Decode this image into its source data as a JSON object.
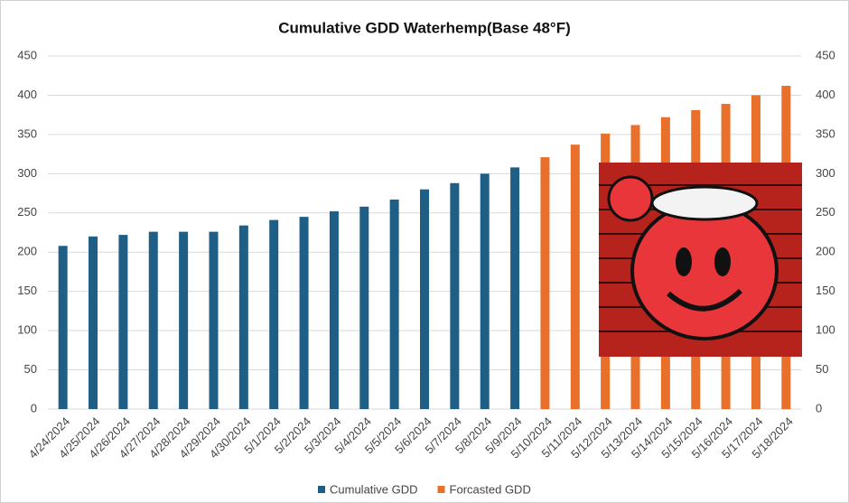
{
  "chart_data": {
    "type": "bar",
    "title": "Cumulative GDD Waterhemp(Base 48°F)",
    "categories": [
      "4/24/2024",
      "4/25/2024",
      "4/26/2024",
      "4/27/2024",
      "4/28/2024",
      "4/29/2024",
      "4/30/2024",
      "5/1/2024",
      "5/2/2024",
      "5/3/2024",
      "5/4/2024",
      "5/5/2024",
      "5/6/2024",
      "5/7/2024",
      "5/8/2024",
      "5/9/2024",
      "5/10/2024",
      "5/11/2024",
      "5/12/2024",
      "5/13/2024",
      "5/14/2024",
      "5/15/2024",
      "5/16/2024",
      "5/17/2024",
      "5/18/2024"
    ],
    "series": [
      {
        "name": "Cumulative GDD",
        "color": "#1f5f85",
        "values": [
          208,
          220,
          222,
          226,
          226,
          226,
          234,
          241,
          245,
          252,
          258,
          267,
          280,
          288,
          300,
          308,
          null,
          null,
          null,
          null,
          null,
          null,
          null,
          null,
          null
        ]
      },
      {
        "name": "Forcasted GDD",
        "color": "#e8702a",
        "values": [
          null,
          null,
          null,
          null,
          null,
          null,
          null,
          null,
          null,
          null,
          null,
          null,
          null,
          null,
          null,
          null,
          321,
          337,
          351,
          362,
          372,
          381,
          389,
          400,
          412
        ]
      }
    ],
    "ylim": [
      0,
      450
    ],
    "yticks": [
      0,
      50,
      100,
      150,
      200,
      250,
      300,
      350,
      400,
      450
    ],
    "y2lim": [
      0,
      450
    ],
    "y2ticks": [
      0,
      50,
      100,
      150,
      200,
      250,
      300,
      350,
      400,
      450
    ],
    "grid": true,
    "legend": "bottom"
  }
}
